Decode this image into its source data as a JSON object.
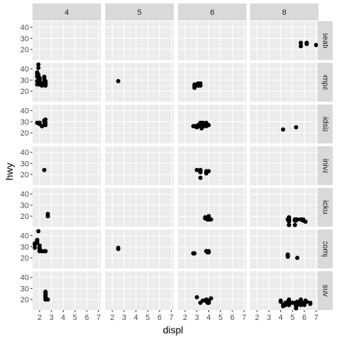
{
  "chart_data": {
    "type": "scatter",
    "title": "",
    "xlabel": "displ",
    "ylabel": "hwy",
    "xlim": [
      1.4,
      7.2
    ],
    "ylim": [
      10.5,
      45.5
    ],
    "x_ticks": [
      2,
      3,
      4,
      5,
      6,
      7
    ],
    "y_ticks": [
      20,
      30,
      40
    ],
    "grid": true,
    "facet_cols": [
      "4",
      "5",
      "6",
      "8"
    ],
    "facet_rows": [
      "2seater",
      "compact",
      "midsize",
      "minivan",
      "pickup",
      "subcompact",
      "suv"
    ],
    "panels": [
      {
        "row": "2seater",
        "col": "8",
        "points": [
          [
            5.7,
            26
          ],
          [
            5.7,
            23
          ],
          [
            6.2,
            26
          ],
          [
            6.2,
            25
          ],
          [
            7.0,
            24
          ]
        ]
      },
      {
        "row": "compact",
        "col": "4",
        "points": [
          [
            1.8,
            29
          ],
          [
            1.8,
            29
          ],
          [
            2.0,
            31
          ],
          [
            2.0,
            30
          ],
          [
            1.8,
            26
          ],
          [
            1.8,
            33
          ],
          [
            2.0,
            32
          ],
          [
            2.0,
            28
          ],
          [
            1.9,
            44
          ],
          [
            2.0,
            29
          ],
          [
            2.0,
            26
          ],
          [
            2.0,
            29
          ],
          [
            1.8,
            29
          ],
          [
            1.8,
            29
          ],
          [
            2.0,
            28
          ],
          [
            2.0,
            29
          ],
          [
            2.2,
            26
          ],
          [
            2.2,
            27
          ],
          [
            2.4,
            30
          ],
          [
            2.4,
            33
          ],
          [
            2.4,
            32
          ],
          [
            2.5,
            28
          ],
          [
            2.5,
            29
          ],
          [
            2.2,
            25
          ],
          [
            1.8,
            37
          ],
          [
            1.8,
            35
          ],
          [
            1.9,
            41
          ],
          [
            1.9,
            35
          ],
          [
            2.0,
            30
          ],
          [
            2.0,
            27
          ],
          [
            2.0,
            28
          ],
          [
            2.0,
            30
          ],
          [
            2.5,
            27
          ],
          [
            2.5,
            25
          ],
          [
            2.0,
            29
          ],
          [
            2.5,
            26
          ],
          [
            2.5,
            28
          ]
        ]
      },
      {
        "row": "compact",
        "col": "5",
        "points": [
          [
            2.5,
            29
          ]
        ]
      },
      {
        "row": "compact",
        "col": "6",
        "points": [
          [
            2.8,
            26
          ],
          [
            2.8,
            24
          ],
          [
            3.1,
            25
          ],
          [
            2.8,
            25
          ],
          [
            3.1,
            25
          ],
          [
            2.8,
            23
          ],
          [
            3.0,
            26
          ],
          [
            3.0,
            26
          ],
          [
            3.1,
            27
          ],
          [
            2.8,
            25
          ],
          [
            3.3,
            27
          ],
          [
            3.3,
            25
          ]
        ]
      },
      {
        "row": "midsize",
        "col": "4",
        "points": [
          [
            2.4,
            27
          ],
          [
            2.4,
            30
          ],
          [
            2.4,
            31
          ],
          [
            2.5,
            29
          ],
          [
            2.5,
            32
          ],
          [
            2.5,
            27
          ],
          [
            2.2,
            26
          ],
          [
            2.2,
            26
          ],
          [
            2.0,
            29
          ],
          [
            2.0,
            29
          ],
          [
            1.8,
            29
          ],
          [
            1.8,
            29
          ],
          [
            2.0,
            28
          ],
          [
            2.0,
            29
          ],
          [
            2.4,
            31
          ],
          [
            2.4,
            27
          ]
        ]
      },
      {
        "row": "midsize",
        "col": "6",
        "points": [
          [
            2.8,
            26
          ],
          [
            3.1,
            27
          ],
          [
            3.1,
            26
          ],
          [
            2.8,
            26
          ],
          [
            3.6,
            26
          ],
          [
            2.8,
            26
          ],
          [
            3.3,
            29
          ],
          [
            3.5,
            29
          ],
          [
            3.5,
            26
          ],
          [
            3.8,
            26
          ],
          [
            3.8,
            27
          ],
          [
            3.1,
            27
          ],
          [
            3.3,
            26
          ],
          [
            3.4,
            24
          ],
          [
            3.0,
            26
          ],
          [
            3.0,
            25
          ],
          [
            3.5,
            29
          ],
          [
            3.5,
            28
          ],
          [
            2.7,
            26
          ],
          [
            3.8,
            29
          ],
          [
            4.0,
            27
          ],
          [
            3.1,
            26
          ],
          [
            3.5,
            26
          ]
        ]
      },
      {
        "row": "midsize",
        "col": "8",
        "points": [
          [
            4.2,
            23
          ],
          [
            5.3,
            25
          ]
        ]
      },
      {
        "row": "minivan",
        "col": "4",
        "points": [
          [
            2.4,
            24
          ]
        ]
      },
      {
        "row": "minivan",
        "col": "6",
        "points": [
          [
            3.0,
            24
          ],
          [
            3.3,
            22
          ],
          [
            3.3,
            22
          ],
          [
            3.3,
            24
          ],
          [
            3.3,
            24
          ],
          [
            3.3,
            17
          ],
          [
            3.8,
            22
          ],
          [
            3.8,
            21
          ],
          [
            3.8,
            23
          ],
          [
            4.0,
            23
          ]
        ]
      },
      {
        "row": "pickup",
        "col": "4",
        "points": [
          [
            2.7,
            20
          ],
          [
            2.7,
            22
          ],
          [
            2.7,
            20
          ]
        ]
      },
      {
        "row": "pickup",
        "col": "6",
        "points": [
          [
            3.7,
            19
          ],
          [
            3.7,
            18
          ],
          [
            3.9,
            17
          ],
          [
            3.9,
            17
          ],
          [
            4.0,
            17
          ],
          [
            4.0,
            17
          ],
          [
            4.0,
            20
          ],
          [
            4.0,
            20
          ],
          [
            4.0,
            17
          ],
          [
            4.2,
            17
          ]
        ]
      },
      {
        "row": "pickup",
        "col": "8",
        "points": [
          [
            4.7,
            17
          ],
          [
            4.7,
            12
          ],
          [
            4.7,
            12
          ],
          [
            4.7,
            16
          ],
          [
            4.7,
            17
          ],
          [
            4.7,
            19
          ],
          [
            5.2,
            17
          ],
          [
            5.2,
            16
          ],
          [
            5.2,
            17
          ],
          [
            5.7,
            17
          ],
          [
            5.9,
            17
          ],
          [
            4.7,
            17
          ],
          [
            5.2,
            12
          ],
          [
            5.7,
            17
          ],
          [
            5.9,
            16
          ],
          [
            4.6,
            17
          ],
          [
            5.4,
            17
          ],
          [
            4.7,
            15
          ],
          [
            4.7,
            16
          ],
          [
            4.7,
            17
          ],
          [
            5.3,
            16
          ],
          [
            5.3,
            17
          ],
          [
            6.1,
            15
          ]
        ]
      },
      {
        "row": "subcompact",
        "col": "4",
        "points": [
          [
            1.6,
            33
          ],
          [
            1.6,
            32
          ],
          [
            1.6,
            32
          ],
          [
            1.6,
            29
          ],
          [
            1.6,
            32
          ],
          [
            1.8,
            34
          ],
          [
            1.8,
            36
          ],
          [
            1.8,
            36
          ],
          [
            2.0,
            29
          ],
          [
            2.0,
            26
          ],
          [
            2.0,
            27
          ],
          [
            2.0,
            31
          ],
          [
            2.0,
            29
          ],
          [
            1.9,
            44
          ],
          [
            2.0,
            29
          ],
          [
            2.0,
            26
          ],
          [
            2.2,
            26
          ],
          [
            2.5,
            26
          ],
          [
            2.5,
            26
          ],
          [
            1.8,
            36
          ],
          [
            2.2,
            26
          ],
          [
            2.4,
            26
          ]
        ]
      },
      {
        "row": "subcompact",
        "col": "5",
        "points": [
          [
            2.5,
            28
          ],
          [
            2.5,
            29
          ]
        ]
      },
      {
        "row": "subcompact",
        "col": "6",
        "points": [
          [
            2.7,
            24
          ],
          [
            2.7,
            24
          ],
          [
            2.8,
            24
          ],
          [
            3.8,
            26
          ],
          [
            3.8,
            26
          ],
          [
            3.8,
            26
          ],
          [
            3.9,
            25
          ],
          [
            4.0,
            26
          ],
          [
            4.0,
            25
          ]
        ]
      },
      {
        "row": "subcompact",
        "col": "8",
        "points": [
          [
            4.6,
            22
          ],
          [
            4.6,
            23
          ],
          [
            4.6,
            21
          ],
          [
            5.4,
            20
          ]
        ]
      },
      {
        "row": "suv",
        "col": "4",
        "points": [
          [
            2.5,
            23
          ],
          [
            2.5,
            20
          ],
          [
            2.5,
            27
          ],
          [
            2.5,
            25
          ],
          [
            2.5,
            26
          ],
          [
            2.5,
            24
          ],
          [
            2.5,
            22
          ],
          [
            2.7,
            20
          ],
          [
            2.5,
            22
          ],
          [
            2.5,
            21
          ]
        ]
      },
      {
        "row": "suv",
        "col": "6",
        "points": [
          [
            3.0,
            22
          ],
          [
            3.7,
            19
          ],
          [
            4.0,
            18
          ],
          [
            4.0,
            17
          ],
          [
            4.0,
            19
          ],
          [
            3.3,
            17
          ],
          [
            3.5,
            19
          ],
          [
            3.8,
            20
          ],
          [
            3.9,
            17
          ],
          [
            4.2,
            21
          ],
          [
            4.0,
            17
          ],
          [
            4.0,
            19
          ]
        ]
      },
      {
        "row": "suv",
        "col": "8",
        "points": [
          [
            4.7,
            17
          ],
          [
            4.7,
            15
          ],
          [
            4.7,
            16
          ],
          [
            5.2,
            17
          ],
          [
            5.7,
            15
          ],
          [
            5.4,
            17
          ],
          [
            5.3,
            15
          ],
          [
            5.3,
            14
          ],
          [
            5.3,
            15
          ],
          [
            5.3,
            12
          ],
          [
            5.7,
            17
          ],
          [
            6.0,
            15
          ],
          [
            6.5,
            17
          ],
          [
            4.6,
            17
          ],
          [
            5.4,
            17
          ],
          [
            5.4,
            18
          ],
          [
            4.2,
            15
          ],
          [
            4.4,
            17
          ],
          [
            4.6,
            17
          ],
          [
            4.4,
            16
          ],
          [
            4.6,
            18
          ],
          [
            5.0,
            17
          ],
          [
            5.4,
            18
          ],
          [
            5.7,
            19
          ],
          [
            4.7,
            20
          ],
          [
            4.6,
            16
          ],
          [
            5.4,
            17
          ],
          [
            4.0,
            19
          ],
          [
            4.7,
            19
          ],
          [
            5.3,
            14
          ],
          [
            5.7,
            17
          ],
          [
            6.5,
            16
          ],
          [
            6.1,
            19
          ],
          [
            4.4,
            15
          ],
          [
            5.4,
            17
          ],
          [
            4.0,
            18
          ],
          [
            5.0,
            17
          ],
          [
            5.7,
            20
          ],
          [
            6.2,
            18
          ],
          [
            5.4,
            15
          ],
          [
            4.7,
            16
          ],
          [
            4.2,
            14
          ],
          [
            6.0,
            17
          ]
        ]
      }
    ]
  }
}
